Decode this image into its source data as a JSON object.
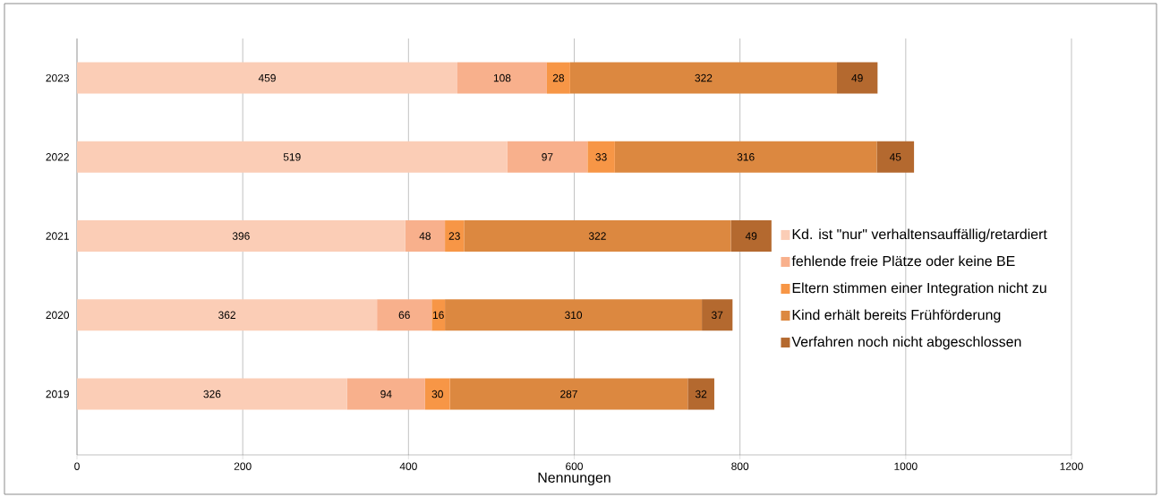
{
  "chart_data": {
    "type": "bar",
    "orientation": "horizontal",
    "stacked": true,
    "categories": [
      "2023",
      "2022",
      "2021",
      "2020",
      "2019"
    ],
    "series": [
      {
        "name": "Kd. ist \"nur\" verhaltensauffällig/retardiert",
        "color": "#fbcdb6",
        "values": [
          459,
          519,
          396,
          362,
          326
        ]
      },
      {
        "name": "fehlende freie Plätze oder keine BE",
        "color": "#f8b08c",
        "values": [
          108,
          97,
          48,
          66,
          94
        ]
      },
      {
        "name": "Eltern stimmen einer Integration nicht zu",
        "color": "#f79646",
        "values": [
          28,
          33,
          23,
          16,
          30
        ]
      },
      {
        "name": "Kind erhält bereits Frühförderung",
        "color": "#dc8840",
        "values": [
          322,
          316,
          322,
          310,
          287
        ]
      },
      {
        "name": "Verfahren noch nicht abgeschlossen",
        "color": "#b4692f",
        "values": [
          49,
          45,
          49,
          37,
          32
        ]
      }
    ],
    "xlabel": "Nennungen",
    "xlim": [
      0,
      1200
    ],
    "xticks": [
      0,
      200,
      400,
      600,
      800,
      1000,
      1200
    ],
    "grid": "x",
    "legend": "right",
    "data_labels": true
  }
}
